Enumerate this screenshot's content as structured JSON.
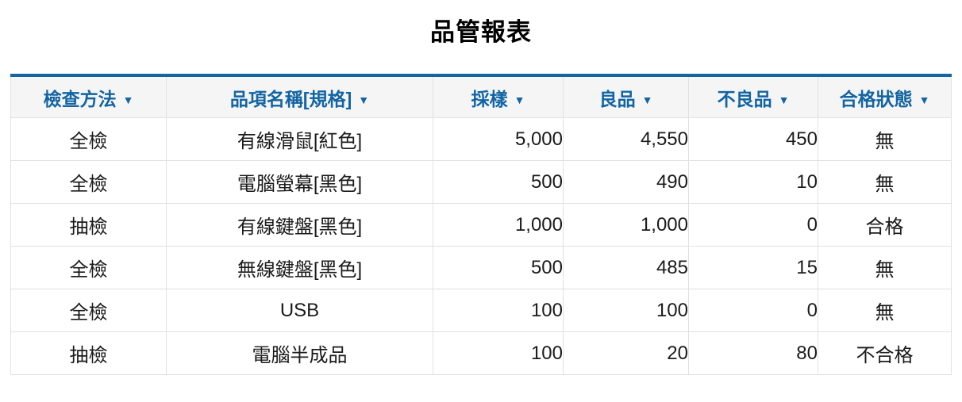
{
  "page_title": "品管報表",
  "colors": {
    "header_text": "#1264a3",
    "top_border": "#1264a3",
    "header_bg": "#f5f5f6",
    "grid_line": "#e1e1e3",
    "body_text": "#1b1b1b"
  },
  "table": {
    "sort_icon": "▼",
    "columns": [
      {
        "label": "檢查方法"
      },
      {
        "label": "品項名稱[規格]"
      },
      {
        "label": "採樣"
      },
      {
        "label": "良品"
      },
      {
        "label": "不良品"
      },
      {
        "label": "合格狀態"
      }
    ],
    "rows": [
      {
        "method": "全檢",
        "item": "有線滑鼠[紅色]",
        "sample": "5,000",
        "good": "4,550",
        "defect": "450",
        "status": "無"
      },
      {
        "method": "全檢",
        "item": "電腦螢幕[黑色]",
        "sample": "500",
        "good": "490",
        "defect": "10",
        "status": "無"
      },
      {
        "method": "抽檢",
        "item": "有線鍵盤[黑色]",
        "sample": "1,000",
        "good": "1,000",
        "defect": "0",
        "status": "合格"
      },
      {
        "method": "全檢",
        "item": "無線鍵盤[黑色]",
        "sample": "500",
        "good": "485",
        "defect": "15",
        "status": "無"
      },
      {
        "method": "全檢",
        "item": "USB",
        "sample": "100",
        "good": "100",
        "defect": "0",
        "status": "無"
      },
      {
        "method": "抽檢",
        "item": "電腦半成品",
        "sample": "100",
        "good": "20",
        "defect": "80",
        "status": "不合格"
      }
    ]
  }
}
